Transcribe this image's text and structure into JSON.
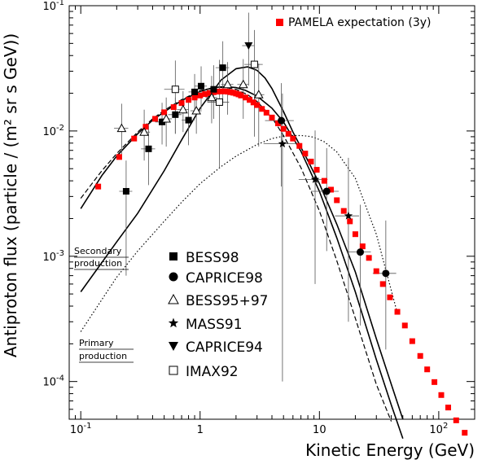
{
  "chart_data": {
    "type": "scatter",
    "xlabel": "Kinetic Energy (GeV)",
    "ylabel": "Antiproton flux (particle / (m² sr s GeV))",
    "xscale": "log",
    "yscale": "log",
    "xlim": [
      0.08,
      200
    ],
    "ylim": [
      5e-05,
      0.1
    ],
    "x_ticks": [
      {
        "value": 0.1,
        "base": "10",
        "exp": "-1"
      },
      {
        "value": 1,
        "base": "1",
        "exp": ""
      },
      {
        "value": 10,
        "base": "10",
        "exp": ""
      },
      {
        "value": 100,
        "base": "10",
        "exp": "2"
      }
    ],
    "y_ticks": [
      {
        "value": 0.0001,
        "base": "10",
        "exp": "-4"
      },
      {
        "value": 0.001,
        "base": "10",
        "exp": "-3"
      },
      {
        "value": 0.01,
        "base": "10",
        "exp": "-2"
      },
      {
        "value": 0.1,
        "base": "10",
        "exp": "-1"
      }
    ],
    "legend_position": "bottom-left",
    "series": [
      {
        "name": "PAMELA expectation (3y)",
        "marker": "square-filled",
        "color": "#ff0000",
        "x": [
          0.14,
          0.21,
          0.28,
          0.35,
          0.42,
          0.5,
          0.6,
          0.7,
          0.8,
          0.9,
          1.0,
          1.1,
          1.2,
          1.3,
          1.4,
          1.5,
          1.6,
          1.7,
          1.8,
          1.9,
          2.0,
          2.1,
          2.2,
          2.4,
          2.6,
          2.8,
          3.0,
          3.3,
          3.6,
          4.0,
          4.5,
          5.0,
          5.5,
          6.0,
          6.8,
          7.6,
          8.5,
          9.5,
          11,
          12.5,
          14,
          16,
          18,
          20,
          23,
          26,
          30,
          34,
          39,
          45,
          52,
          60,
          70,
          80,
          92,
          105,
          120,
          140,
          165
        ],
        "y": [
          0.0036,
          0.0062,
          0.0087,
          0.0108,
          0.0125,
          0.0141,
          0.0155,
          0.0167,
          0.0177,
          0.0185,
          0.0192,
          0.0197,
          0.0201,
          0.0204,
          0.0206,
          0.0207,
          0.0207,
          0.0206,
          0.0204,
          0.0202,
          0.0199,
          0.0196,
          0.0192,
          0.0185,
          0.0177,
          0.0169,
          0.0161,
          0.015,
          0.014,
          0.0128,
          0.0115,
          0.0104,
          0.0095,
          0.0087,
          0.0076,
          0.0066,
          0.0057,
          0.0049,
          0.004,
          0.0034,
          0.0028,
          0.0023,
          0.0019,
          0.0015,
          0.0012,
          0.00097,
          0.00076,
          0.0006,
          0.00047,
          0.00036,
          0.00028,
          0.00021,
          0.00016,
          0.000125,
          9.9e-05,
          7.8e-05,
          6.2e-05,
          4.9e-05,
          3.9e-05
        ]
      },
      {
        "name": "BESS98",
        "marker": "square-filled",
        "color": "#000000",
        "x": [
          0.24,
          0.37,
          0.48,
          0.62,
          0.8,
          0.9,
          1.02,
          1.3,
          1.55
        ],
        "y": [
          0.0033,
          0.0072,
          0.0118,
          0.0135,
          0.0122,
          0.0205,
          0.0228,
          0.0215,
          0.032
        ],
        "yerr_low": [
          0.0026,
          0.0035,
          0.004,
          0.004,
          0.0045,
          0.006,
          0.008,
          0.009,
          0.015
        ],
        "yerr_high": [
          0.0025,
          0.004,
          0.005,
          0.005,
          0.006,
          0.008,
          0.01,
          0.012,
          0.02
        ],
        "xerr": [
          0.03,
          0.05,
          0.06,
          0.08,
          0.1,
          0.1,
          0.12,
          0.15,
          0.2
        ]
      },
      {
        "name": "CAPRICE98",
        "marker": "circle-filled",
        "color": "#000000",
        "x": [
          4.8,
          11.5,
          22,
          36
        ],
        "y": [
          0.0121,
          0.0033,
          0.00108,
          0.00073
        ],
        "yerr_low": [
          0.0085,
          0.0022,
          0.0008,
          0.00055
        ],
        "yerr_high": [
          0.012,
          0.004,
          0.0015,
          0.0012
        ],
        "xerr": [
          1.3,
          3,
          5,
          8
        ]
      },
      {
        "name": "BESS95+97",
        "marker": "triangle-up-open",
        "color": "#000000",
        "x": [
          0.22,
          0.34,
          0.52,
          0.72,
          0.93,
          1.25,
          1.7,
          2.3,
          3.1
        ],
        "y": [
          0.0105,
          0.0098,
          0.0125,
          0.0148,
          0.0145,
          0.0185,
          0.0235,
          0.0235,
          0.0195
        ],
        "yerr_low": [
          0.004,
          0.004,
          0.005,
          0.005,
          0.005,
          0.007,
          0.01,
          0.011,
          0.012
        ],
        "yerr_high": [
          0.006,
          0.005,
          0.006,
          0.006,
          0.007,
          0.009,
          0.012,
          0.014,
          0.015
        ],
        "xerr": [
          0.03,
          0.04,
          0.06,
          0.08,
          0.1,
          0.14,
          0.2,
          0.25,
          0.35
        ]
      },
      {
        "name": "MASS91",
        "marker": "star-filled",
        "color": "#000000",
        "x": [
          4.9,
          9.2,
          17.5
        ],
        "y": [
          0.0079,
          0.0041,
          0.0021
        ],
        "yerr_low": [
          0.0078,
          0.0035,
          0.0018
        ],
        "yerr_high": [
          0.012,
          0.006,
          0.004
        ],
        "xerr": [
          1.5,
          2.5,
          4
        ]
      },
      {
        "name": "CAPRICE94",
        "marker": "triangle-down-filled",
        "color": "#000000",
        "x": [
          2.55
        ],
        "y": [
          0.048
        ],
        "yerr_low": [
          0.025
        ],
        "yerr_high": [
          0.04
        ],
        "xerr": [
          0.3
        ]
      },
      {
        "name": "IMAX92",
        "marker": "square-open",
        "color": "#000000",
        "x": [
          0.62,
          1.45,
          2.85
        ],
        "y": [
          0.0215,
          0.017,
          0.034
        ],
        "yerr_low": [
          0.012,
          0.012,
          0.025
        ],
        "yerr_high": [
          0.015,
          0.02,
          0.03
        ],
        "xerr": [
          0.12,
          0.3,
          0.5
        ]
      }
    ],
    "curves": [
      {
        "style": "solid",
        "x": [
          0.1,
          0.15,
          0.2,
          0.3,
          0.4,
          0.5,
          0.7,
          1.0,
          1.3,
          1.6,
          2.0,
          2.4,
          3.0,
          4.0,
          5.0,
          7.0,
          10,
          14,
          20,
          30,
          40,
          50
        ],
        "y": [
          0.0024,
          0.0044,
          0.0063,
          0.0095,
          0.0122,
          0.0142,
          0.0175,
          0.0207,
          0.0222,
          0.0226,
          0.0222,
          0.0211,
          0.019,
          0.0152,
          0.0118,
          0.0069,
          0.0033,
          0.0014,
          0.00052,
          0.00015,
          6.5e-05,
          3.5e-05
        ]
      },
      {
        "style": "solid",
        "x": [
          0.1,
          0.2,
          0.3,
          0.5,
          0.7,
          1.0,
          1.5,
          2.0,
          2.5,
          3.0,
          3.5,
          4.0,
          5.0,
          6.0,
          8.0,
          10,
          14,
          20,
          30,
          40,
          50
        ],
        "y": [
          0.00052,
          0.0013,
          0.0022,
          0.0048,
          0.0085,
          0.0152,
          0.0255,
          0.0314,
          0.0325,
          0.0305,
          0.0265,
          0.0218,
          0.0143,
          0.0098,
          0.0058,
          0.0038,
          0.0018,
          0.00075,
          0.00022,
          9.5e-05,
          5e-05
        ]
      },
      {
        "style": "dashed",
        "x": [
          0.1,
          0.15,
          0.2,
          0.3,
          0.4,
          0.5,
          0.7,
          1.0,
          1.3,
          1.6,
          2.0,
          2.5,
          3.0,
          4.0,
          5.0,
          7.0,
          10,
          14,
          20,
          30,
          40
        ],
        "y": [
          0.0029,
          0.0048,
          0.0066,
          0.0098,
          0.0125,
          0.0146,
          0.0178,
          0.021,
          0.0222,
          0.0223,
          0.0215,
          0.0195,
          0.0172,
          0.0128,
          0.0092,
          0.0051,
          0.0023,
          0.00092,
          0.00032,
          9.5e-05,
          4.8e-05
        ]
      },
      {
        "style": "dotted",
        "x": [
          0.1,
          0.15,
          0.2,
          0.3,
          0.5,
          0.7,
          1.0,
          1.5,
          2.0,
          3.0,
          4.0,
          5.0,
          6.0,
          7.0,
          8.0,
          9.0,
          11,
          14,
          20,
          30,
          45
        ],
        "y": [
          0.00025,
          0.00045,
          0.00068,
          0.0011,
          0.0019,
          0.0027,
          0.0038,
          0.0052,
          0.0063,
          0.0078,
          0.0087,
          0.0091,
          0.0092,
          0.0092,
          0.0091,
          0.0089,
          0.0082,
          0.0068,
          0.0042,
          0.0015,
          0.00035
        ]
      }
    ],
    "annotations": [
      {
        "line1": "Secondary",
        "line2": "production"
      },
      {
        "line1": "Primary",
        "line2": "production"
      }
    ]
  }
}
